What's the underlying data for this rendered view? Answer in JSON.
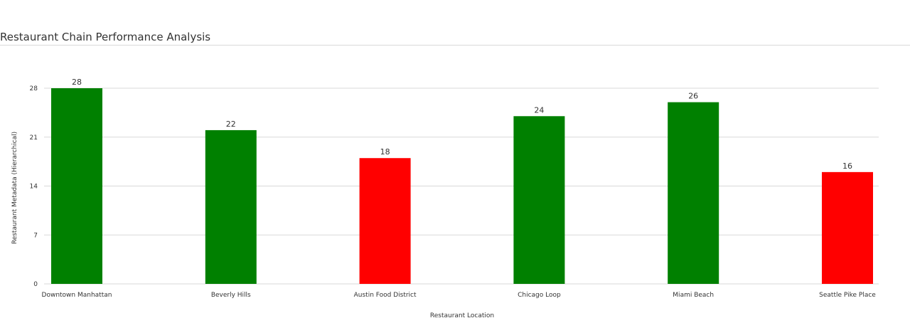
{
  "header": {
    "title": "Restaurant Chain Performance Analysis"
  },
  "chart_data": {
    "type": "bar",
    "title": "Restaurant Chain Performance Analysis",
    "xlabel": "Restaurant Location",
    "ylabel": "Restaurant Metadata (Hierarchical)",
    "categories": [
      "Downtown Manhattan",
      "Beverly Hills",
      "Austin Food District",
      "Chicago Loop",
      "Miami Beach",
      "Seattle Pike Place"
    ],
    "values": [
      28,
      22,
      18,
      24,
      26,
      16
    ],
    "bar_colors": [
      "#008000",
      "#008000",
      "#ff0000",
      "#008000",
      "#008000",
      "#ff0000"
    ],
    "ylim": [
      0,
      28
    ],
    "yticks": [
      0,
      7,
      14,
      21,
      28
    ],
    "grid": true,
    "legend": "none"
  }
}
